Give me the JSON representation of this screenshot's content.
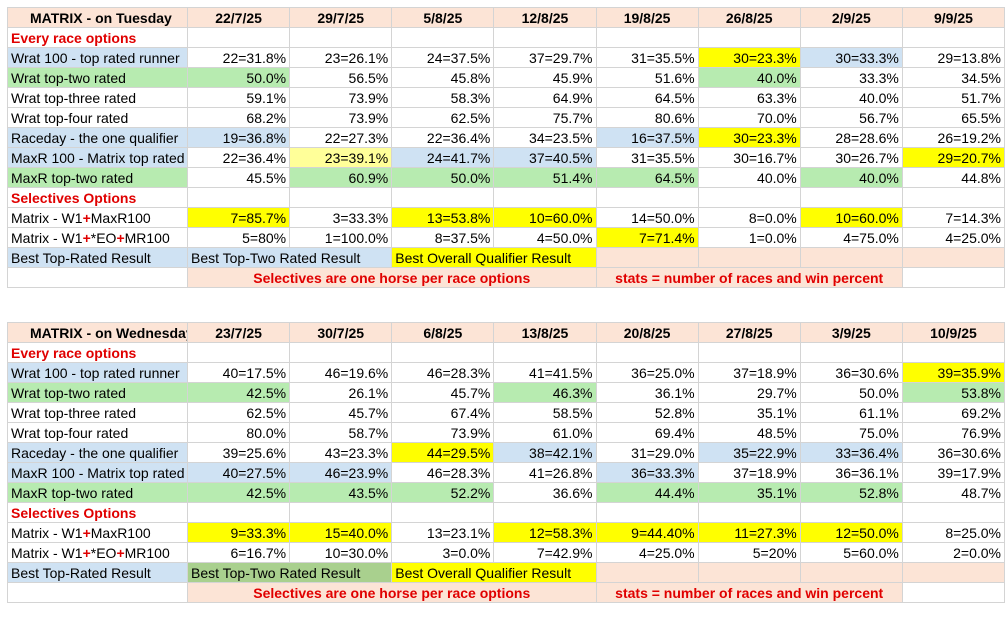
{
  "tables": [
    {
      "title": "MATRIX - on Tuesday",
      "dates": [
        "22/7/25",
        "29/7/25",
        "5/8/25",
        "12/8/25",
        "19/8/25",
        "26/8/25",
        "2/9/25",
        "9/9/25"
      ],
      "every_race_heading": "Every race options",
      "every_race_rows": [
        {
          "label": "Wrat 100 - top rated runner",
          "label_color": "blue",
          "values": [
            "22=31.8%",
            "23=26.1%",
            "24=37.5%",
            "37=29.7%",
            "31=35.5%",
            "30=23.3%",
            "30=33.3%",
            "29=13.8%"
          ],
          "colors": [
            "",
            "",
            "",
            "",
            "",
            "yellow",
            "blue",
            ""
          ]
        },
        {
          "label": "Wrat top-two rated",
          "label_color": "green",
          "values": [
            "50.0%",
            "56.5%",
            "45.8%",
            "45.9%",
            "51.6%",
            "40.0%",
            "33.3%",
            "34.5%"
          ],
          "colors": [
            "green",
            "",
            "",
            "",
            "",
            "green",
            "",
            ""
          ]
        },
        {
          "label": "Wrat top-three rated",
          "label_color": "",
          "values": [
            "59.1%",
            "73.9%",
            "58.3%",
            "64.9%",
            "64.5%",
            "63.3%",
            "40.0%",
            "51.7%"
          ],
          "colors": [
            "",
            "",
            "",
            "",
            "",
            "",
            "",
            ""
          ]
        },
        {
          "label": "Wrat top-four rated",
          "label_color": "",
          "values": [
            "68.2%",
            "73.9%",
            "62.5%",
            "75.7%",
            "80.6%",
            "70.0%",
            "56.7%",
            "65.5%"
          ],
          "colors": [
            "",
            "",
            "",
            "",
            "",
            "",
            "",
            ""
          ]
        },
        {
          "label": "Raceday - the one qualifier",
          "label_color": "blue",
          "values": [
            "19=36.8%",
            "22=27.3%",
            "22=36.4%",
            "34=23.5%",
            "16=37.5%",
            "30=23.3%",
            "28=28.6%",
            "26=19.2%"
          ],
          "colors": [
            "blue",
            "",
            "",
            "",
            "blue",
            "yellow",
            "",
            ""
          ]
        },
        {
          "label": "MaxR 100 - Matrix top rated",
          "label_color": "blue",
          "values": [
            "22=36.4%",
            "23=39.1%",
            "24=41.7%",
            "37=40.5%",
            "31=35.5%",
            "30=16.7%",
            "30=26.7%",
            "29=20.7%"
          ],
          "colors": [
            "",
            "lyellow",
            "blue",
            "blue",
            "",
            "",
            "",
            "yellow"
          ]
        },
        {
          "label": "MaxR top-two rated",
          "label_color": "green",
          "values": [
            "45.5%",
            "60.9%",
            "50.0%",
            "51.4%",
            "64.5%",
            "40.0%",
            "40.0%",
            "44.8%"
          ],
          "colors": [
            "",
            "green",
            "green",
            "green",
            "green",
            "",
            "green",
            ""
          ]
        }
      ],
      "selectives_heading": "Selectives Options",
      "selective_rows": [
        {
          "parts": [
            "Matrix - W1",
            "+",
            "MaxR100"
          ],
          "values": [
            "7=85.7%",
            "3=33.3%",
            "13=53.8%",
            "10=60.0%",
            "14=50.0%",
            "8=0.0%",
            "10=60.0%",
            "7=14.3%"
          ],
          "colors": [
            "yellow",
            "",
            "yellow",
            "yellow",
            "",
            "",
            "yellow",
            ""
          ]
        },
        {
          "parts": [
            "Matrix - W1",
            "+",
            "*EO",
            "+",
            "MR100"
          ],
          "values": [
            "5=80%",
            "1=100.0%",
            "8=37.5%",
            "4=50.0%",
            "7=71.4%",
            "1=0.0%",
            "4=75.0%",
            "4=25.0%"
          ],
          "colors": [
            "",
            "",
            "",
            "",
            "yellow",
            "",
            "",
            ""
          ]
        }
      ],
      "legend": {
        "best_top_rated": "Best Top-Rated Result",
        "best_top_two": "Best Top-Two Rated Result",
        "best_overall": "Best Overall Qualifier Result"
      },
      "notes": {
        "selectives": "Selectives are one horse per race options",
        "stats": "stats = number of races and win percent"
      }
    },
    {
      "title": "MATRIX - on Wednesday",
      "dates": [
        "23/7/25",
        "30/7/25",
        "6/8/25",
        "13/8/25",
        "20/8/25",
        "27/8/25",
        "3/9/25",
        "10/9/25"
      ],
      "every_race_heading": "Every race options",
      "every_race_rows": [
        {
          "label": "Wrat 100 - top rated runner",
          "label_color": "blue",
          "values": [
            "40=17.5%",
            "46=19.6%",
            "46=28.3%",
            "41=41.5%",
            "36=25.0%",
            "37=18.9%",
            "36=30.6%",
            "39=35.9%"
          ],
          "colors": [
            "",
            "",
            "",
            "",
            "",
            "",
            "",
            "yellow"
          ]
        },
        {
          "label": "Wrat top-two rated",
          "label_color": "green",
          "values": [
            "42.5%",
            "26.1%",
            "45.7%",
            "46.3%",
            "36.1%",
            "29.7%",
            "50.0%",
            "53.8%"
          ],
          "colors": [
            "green",
            "",
            "",
            "green",
            "",
            "",
            "",
            "green"
          ]
        },
        {
          "label": "Wrat top-three rated",
          "label_color": "",
          "values": [
            "62.5%",
            "45.7%",
            "67.4%",
            "58.5%",
            "52.8%",
            "35.1%",
            "61.1%",
            "69.2%"
          ],
          "colors": [
            "",
            "",
            "",
            "",
            "",
            "",
            "",
            ""
          ]
        },
        {
          "label": "Wrat top-four rated",
          "label_color": "",
          "values": [
            "80.0%",
            "58.7%",
            "73.9%",
            "61.0%",
            "69.4%",
            "48.5%",
            "75.0%",
            "76.9%"
          ],
          "colors": [
            "",
            "",
            "",
            "",
            "",
            "",
            "",
            ""
          ]
        },
        {
          "label": "Raceday - the one qualifier",
          "label_color": "blue",
          "values": [
            "39=25.6%",
            "43=23.3%",
            "44=29.5%",
            "38=42.1%",
            "31=29.0%",
            "35=22.9%",
            "33=36.4%",
            "36=30.6%"
          ],
          "colors": [
            "",
            "",
            "yellow",
            "blue",
            "",
            "blue",
            "blue",
            ""
          ]
        },
        {
          "label": "MaxR 100 - Matrix top rated",
          "label_color": "blue",
          "values": [
            "40=27.5%",
            "46=23.9%",
            "46=28.3%",
            "41=26.8%",
            "36=33.3%",
            "37=18.9%",
            "36=36.1%",
            "39=17.9%"
          ],
          "colors": [
            "blue",
            "blue",
            "",
            "",
            "blue",
            "",
            "",
            ""
          ]
        },
        {
          "label": "MaxR top-two rated",
          "label_color": "green",
          "values": [
            "42.5%",
            "43.5%",
            "52.2%",
            "36.6%",
            "44.4%",
            "35.1%",
            "52.8%",
            "48.7%"
          ],
          "colors": [
            "green",
            "green",
            "green",
            "",
            "green",
            "green",
            "green",
            ""
          ]
        }
      ],
      "selectives_heading": "Selectives Options",
      "selective_rows": [
        {
          "parts": [
            "Matrix - W1",
            "+",
            "MaxR100"
          ],
          "values": [
            "9=33.3%",
            "15=40.0%",
            "13=23.1%",
            "12=58.3%",
            "9=44.40%",
            "11=27.3%",
            "12=50.0%",
            "8=25.0%"
          ],
          "colors": [
            "yellow",
            "yellow",
            "",
            "yellow",
            "yellow",
            "yellow",
            "yellow",
            ""
          ]
        },
        {
          "parts": [
            "Matrix - W1",
            "+",
            "*EO",
            "+",
            "MR100"
          ],
          "values": [
            "6=16.7%",
            "10=30.0%",
            "3=0.0%",
            "7=42.9%",
            "4=25.0%",
            "5=20%",
            "5=60.0%",
            "2=0.0%"
          ],
          "colors": [
            "",
            "",
            "",
            "",
            "",
            "",
            "",
            ""
          ]
        }
      ],
      "legend": {
        "best_top_rated": "Best Top-Rated Result",
        "best_top_two": "Best Top-Two Rated Result",
        "best_overall": "Best Overall Qualifier Result"
      },
      "notes": {
        "selectives": "Selectives are one horse per race options",
        "stats": "stats = number of races and win percent"
      }
    }
  ],
  "colors": {
    "header": "#fce4d6",
    "blue": "#cfe2f3",
    "green": "#b7ebb0",
    "yellow": "#ffff00",
    "light_yellow": "#ffff99",
    "red_text": "#e00000",
    "green_box": "#a9d08e"
  }
}
